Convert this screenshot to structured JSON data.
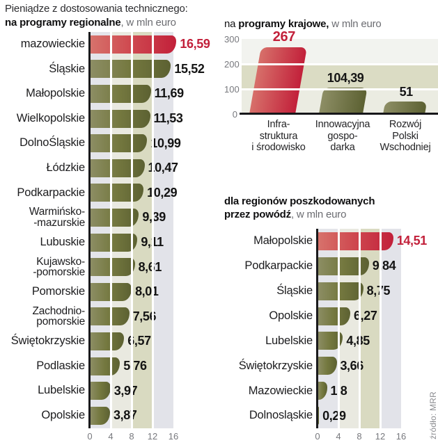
{
  "header": {
    "title": "Pieniądze z dostosowania technicznego:"
  },
  "footer": {
    "source": "źródło: MRR"
  },
  "colors": {
    "highlight_text": "#c2203a",
    "value_text": "#141414",
    "tick_text": "#77787d",
    "muted_text": "#6b6c71",
    "axis_line": "#1a1a1c",
    "bar_red_gradient": [
      "#d7736c",
      "#c2203a"
    ],
    "bar_olive_gradient": [
      "#8d8e65",
      "#5c6132"
    ],
    "h_band_columns": [
      "#e4e5ea",
      "#e9e9e0",
      "#d9dac1",
      "#e2e3e9"
    ],
    "v_band_rows": [
      "#f2f3ef",
      "#dbdcc4",
      "#ebece2"
    ]
  },
  "chart_data": [
    {
      "id": "regional",
      "type": "bar",
      "orientation": "horizontal",
      "title_lines": [
        {
          "prefix": "",
          "bold": "na programy regionalne",
          "rest": ", w mln euro"
        }
      ],
      "unit": "mln euro",
      "categories": [
        "mazowieckie",
        "Śląskie",
        "Małopolskie",
        "Wielkopolskie",
        "DolnoŚląskie",
        "Łódzkie",
        "Podkarpackie",
        "Warmińsko-\n-mazurskie",
        "Lubuskie",
        "Kujawsko-\n-pomorskie",
        "Pomorskie",
        "Zachodnio-\npomorskie",
        "Świętokrzyskie",
        "Podlaskie",
        "Lubelskie",
        "Opolskie"
      ],
      "values": [
        16.59,
        15.52,
        11.69,
        11.53,
        10.99,
        10.47,
        10.29,
        9.39,
        9.11,
        8.61,
        8.01,
        7.56,
        6.57,
        5.76,
        3.97,
        3.87
      ],
      "value_labels": [
        "16,59",
        "15,52",
        "11,69",
        "11,53",
        "10,99",
        "10,47",
        "10,29",
        "9,39",
        "9,11",
        "8,61",
        "8,01",
        "7,56",
        "6,57",
        "5,76",
        "3,97",
        "3,87"
      ],
      "highlight_index": 0,
      "x_ticks": [
        "0",
        "4",
        "8",
        "12",
        "16"
      ],
      "xlim": [
        0,
        16
      ],
      "grid": true,
      "legend": "none"
    },
    {
      "id": "national",
      "type": "bar",
      "orientation": "vertical",
      "title_lines": [
        {
          "prefix": "na ",
          "bold": "programy krajowe,",
          "rest": " w mln euro"
        }
      ],
      "unit": "mln euro",
      "categories": [
        "Infra-\nstruktura\ni środowisko",
        "Innowacyjna\ngospo-\ndarka",
        "Rozwój\nPolski\nWschodniej"
      ],
      "values": [
        267,
        104.39,
        51
      ],
      "value_labels": [
        "267",
        "104,39",
        "51"
      ],
      "highlight_index": 0,
      "y_ticks": [
        "300",
        "200",
        "100",
        "0"
      ],
      "ylim": [
        0,
        300
      ],
      "grid": true,
      "legend": "none"
    },
    {
      "id": "flood",
      "type": "bar",
      "orientation": "horizontal",
      "title_lines": [
        {
          "prefix": "",
          "bold": "dla regionów poszkodowanych",
          "rest": ""
        },
        {
          "prefix": "",
          "bold": "przez powódź",
          "rest": ", w mln euro"
        }
      ],
      "unit": "mln euro",
      "categories": [
        "Małopolskie",
        "Podkarpackie",
        "Śląskie",
        "Opolskie",
        "Lubelskie",
        "Świętokrzyskie",
        "Mazowieckie",
        "Dolnosląskie"
      ],
      "values": [
        14.51,
        9.84,
        8.75,
        6.27,
        4.85,
        3.66,
        1.8,
        0.29
      ],
      "value_labels": [
        "14,51",
        "9,84",
        "8,75",
        "6,27",
        "4,85",
        "3,66",
        "1,8",
        "0,29"
      ],
      "highlight_index": 0,
      "x_ticks": [
        "0",
        "4",
        "8",
        "12",
        "16"
      ],
      "xlim": [
        0,
        16
      ],
      "grid": true,
      "legend": "none"
    }
  ]
}
